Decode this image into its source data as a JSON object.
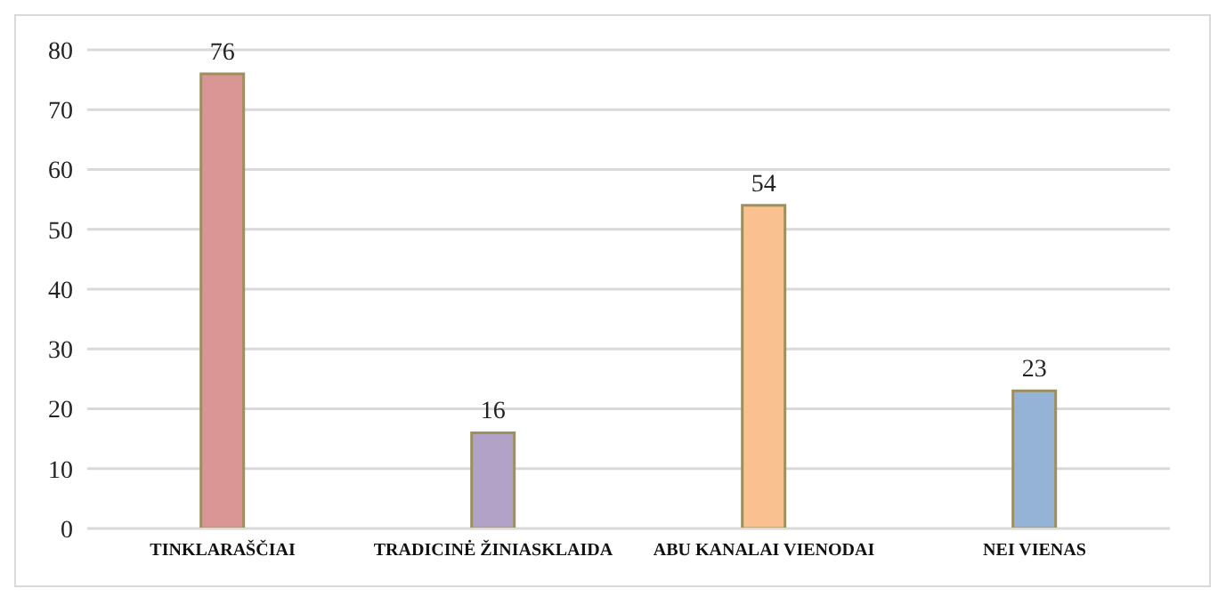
{
  "chart_data": {
    "type": "bar",
    "categories": [
      "TINKLARAŠČIAI",
      "TRADICINĖ ŽINIASKLAIDA",
      "ABU KANALAI VIENODAI",
      "NEI VIENAS"
    ],
    "values": [
      76,
      16,
      54,
      23
    ],
    "colors": [
      "#d99694",
      "#b3a2c7",
      "#fac090",
      "#95b3d7"
    ],
    "ylim": [
      0,
      80
    ],
    "yticks": [
      0,
      10,
      20,
      30,
      40,
      50,
      60,
      70,
      80
    ],
    "grid": "y",
    "data_labels": true
  }
}
